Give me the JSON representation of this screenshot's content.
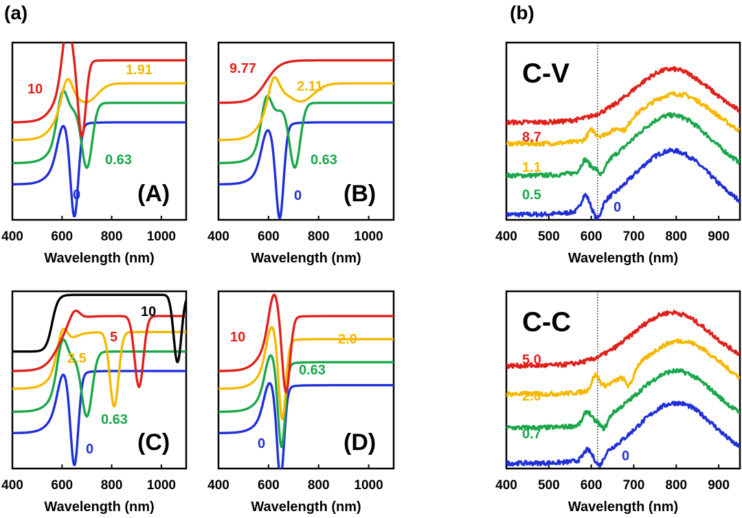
{
  "figure_labels": {
    "a": "(a)",
    "b": "(b)"
  },
  "chart_data": [
    {
      "id": "A",
      "type": "line",
      "panel_label": "(A)",
      "xlabel": "Wavelength (nm)",
      "xlim": [
        400,
        1100
      ],
      "xticks": [
        400,
        600,
        800,
        1000
      ],
      "yticks_shown": false,
      "grid": false,
      "series": [
        {
          "name": "0",
          "color": "#1f2fd8",
          "label": "0",
          "dip_nm": 650,
          "dip_width_nm": 22,
          "dip_depth": 0.5,
          "bump_nm": 600,
          "bump": 0.12,
          "offset": 0.2,
          "plateau": 0.55
        },
        {
          "name": "0.63",
          "color": "#1aa64a",
          "label": "0.63",
          "dip_nm": 700,
          "dip_width_nm": 30,
          "dip_depth": 0.36,
          "bump_nm": 600,
          "bump": 0.2,
          "offset": 0.32,
          "plateau": 0.66
        },
        {
          "name": "1.91",
          "color": "#f5b800",
          "label": "1.91",
          "dip_nm": 700,
          "dip_width_nm": 60,
          "dip_depth": 0.1,
          "bump_nm": 620,
          "bump": 0.12,
          "offset": 0.45,
          "plateau": 0.77
        },
        {
          "name": "10",
          "color": "#e0201b",
          "label": "10",
          "dip_nm": 680,
          "dip_width_nm": 22,
          "dip_depth": 0.42,
          "bump_nm": 620,
          "bump": 0.28,
          "offset": 0.55,
          "plateau": 0.9
        }
      ]
    },
    {
      "id": "B",
      "type": "line",
      "panel_label": "(B)",
      "xlabel": "Wavelength (nm)",
      "xlim": [
        400,
        1100
      ],
      "xticks": [
        400,
        600,
        800,
        1000
      ],
      "yticks_shown": false,
      "grid": false,
      "series": [
        {
          "name": "0",
          "color": "#1f2fd8",
          "label": "0",
          "dip_nm": 645,
          "dip_width_nm": 22,
          "dip_depth": 0.5,
          "bump_nm": 590,
          "bump": 0.12,
          "offset": 0.2,
          "plateau": 0.55
        },
        {
          "name": "0.63",
          "color": "#1aa64a",
          "label": "0.63",
          "dip_nm": 705,
          "dip_width_nm": 30,
          "dip_depth": 0.36,
          "bump_nm": 590,
          "bump": 0.2,
          "offset": 0.32,
          "plateau": 0.66
        },
        {
          "name": "2.11",
          "color": "#f5b800",
          "label": "2.11",
          "dip_nm": 730,
          "dip_width_nm": 70,
          "dip_depth": 0.1,
          "bump_nm": 620,
          "bump": 0.12,
          "offset": 0.45,
          "plateau": 0.77
        },
        {
          "name": "9.77",
          "color": "#e0201b",
          "label": "9.77",
          "dip_nm": 0,
          "dip_width_nm": 1,
          "dip_depth": 0,
          "bump_nm": 600,
          "bump": 0,
          "offset": 0.66,
          "plateau": 0.9
        }
      ]
    },
    {
      "id": "C",
      "type": "line",
      "panel_label": "(C)",
      "xlabel": "Wavelength (nm)",
      "xlim": [
        400,
        1100
      ],
      "xticks": [
        400,
        600,
        800,
        1000
      ],
      "yticks_shown": false,
      "grid": false,
      "series": [
        {
          "name": "0",
          "color": "#1f2fd8",
          "label": "0",
          "dip_nm": 650,
          "dip_width_nm": 22,
          "dip_depth": 0.5,
          "bump_nm": 600,
          "bump": 0.12,
          "offset": 0.2,
          "plateau": 0.55
        },
        {
          "name": "0.63",
          "color": "#1aa64a",
          "label": "0.63",
          "dip_nm": 700,
          "dip_width_nm": 30,
          "dip_depth": 0.36,
          "bump_nm": 600,
          "bump": 0.2,
          "offset": 0.32,
          "plateau": 0.66
        },
        {
          "name": "2.5",
          "color": "#f5b800",
          "label": "2.5",
          "dip_nm": 810,
          "dip_width_nm": 25,
          "dip_depth": 0.42,
          "bump_nm": 600,
          "bump": 0.14,
          "offset": 0.45,
          "plateau": 0.77
        },
        {
          "name": "5",
          "color": "#e0201b",
          "label": "5",
          "dip_nm": 910,
          "dip_width_nm": 25,
          "dip_depth": 0.4,
          "bump_nm": 650,
          "bump": 0.06,
          "offset": 0.55,
          "plateau": 0.86
        },
        {
          "name": "10",
          "color": "#000000",
          "label": "10",
          "dip_nm": 1065,
          "dip_width_nm": 22,
          "dip_depth": 0.38,
          "bump_nm": 700,
          "bump": 0.0,
          "offset": 0.66,
          "plateau": 1.0
        }
      ]
    },
    {
      "id": "D",
      "type": "line",
      "panel_label": "(D)",
      "xlabel": "Wavelength (nm)",
      "xlim": [
        400,
        1100
      ],
      "xticks": [
        400,
        600,
        800,
        1000
      ],
      "yticks_shown": false,
      "grid": false,
      "series": [
        {
          "name": "0",
          "color": "#1f2fd8",
          "label": "0",
          "dip_nm": 648,
          "dip_width_nm": 20,
          "dip_depth": 0.5,
          "bump_nm": 600,
          "bump": 0.12,
          "offset": 0.2,
          "plateau": 0.47
        },
        {
          "name": "0.63",
          "color": "#1aa64a",
          "label": "0.63",
          "dip_nm": 652,
          "dip_width_nm": 20,
          "dip_depth": 0.46,
          "bump_nm": 605,
          "bump": 0.14,
          "offset": 0.32,
          "plateau": 0.6
        },
        {
          "name": "2.0",
          "color": "#f5b800",
          "label": "2.0",
          "dip_nm": 655,
          "dip_width_nm": 20,
          "dip_depth": 0.44,
          "bump_nm": 610,
          "bump": 0.16,
          "offset": 0.45,
          "plateau": 0.73
        },
        {
          "name": "10",
          "color": "#e0201b",
          "label": "10",
          "dip_nm": 670,
          "dip_width_nm": 22,
          "dip_depth": 0.42,
          "bump_nm": 620,
          "bump": 0.2,
          "offset": 0.55,
          "plateau": 0.86
        }
      ]
    },
    {
      "id": "CV",
      "type": "line",
      "title": "C-V",
      "xlabel": "Wavelength (nm)",
      "xlim": [
        400,
        950
      ],
      "xticks": [
        400,
        500,
        600,
        700,
        800,
        900
      ],
      "yticks_shown": false,
      "grid": false,
      "reference_line_nm": 615,
      "series": [
        {
          "name": "0",
          "color": "#1f2fd8",
          "label": "0",
          "base": 0.03,
          "broad_center_nm": 790,
          "broad_height": 0.36,
          "dip_nm": 615,
          "dip_depth": 0.08,
          "peak_nm": 585,
          "peak": 0.08
        },
        {
          "name": "0.5",
          "color": "#1aa64a",
          "label": "0.5",
          "base": 0.25,
          "broad_center_nm": 790,
          "broad_height": 0.34,
          "dip_nm": 625,
          "dip_depth": 0.06,
          "peak_nm": 585,
          "peak": 0.06
        },
        {
          "name": "1.1",
          "color": "#f5b800",
          "label": "1.1",
          "base": 0.43,
          "broad_center_nm": 800,
          "broad_height": 0.28,
          "dip_nm": 680,
          "dip_depth": 0.04,
          "peak_nm": 600,
          "peak": 0.05
        },
        {
          "name": "8.7",
          "color": "#e0201b",
          "label": "8.7",
          "base": 0.55,
          "broad_center_nm": 790,
          "broad_height": 0.3,
          "dip_nm": 600,
          "dip_depth": 0.0,
          "peak_nm": 600,
          "peak": 0.0
        }
      ]
    },
    {
      "id": "CC",
      "type": "line",
      "title": "C-C",
      "xlabel": "Wavelength (nm)",
      "xlim": [
        400,
        950
      ],
      "xticks": [
        400,
        500,
        600,
        700,
        800,
        900
      ],
      "yticks_shown": false,
      "grid": false,
      "reference_line_nm": 615,
      "series": [
        {
          "name": "0",
          "color": "#1f2fd8",
          "label": "0",
          "base": 0.03,
          "broad_center_nm": 800,
          "broad_height": 0.34,
          "dip_nm": 620,
          "dip_depth": 0.06,
          "peak_nm": 590,
          "peak": 0.05
        },
        {
          "name": "0.7",
          "color": "#1aa64a",
          "label": "0.7",
          "base": 0.23,
          "broad_center_nm": 800,
          "broad_height": 0.32,
          "dip_nm": 630,
          "dip_depth": 0.06,
          "peak_nm": 590,
          "peak": 0.07
        },
        {
          "name": "2.0",
          "color": "#f5b800",
          "label": "2.0",
          "base": 0.42,
          "broad_center_nm": 810,
          "broad_height": 0.3,
          "dip_nm": 690,
          "dip_depth": 0.08,
          "peak_nm": 610,
          "peak": 0.08
        },
        {
          "name": "5.0",
          "color": "#e0201b",
          "label": "5.0",
          "base": 0.58,
          "broad_center_nm": 790,
          "broad_height": 0.3,
          "dip_nm": 600,
          "dip_depth": 0.0,
          "peak_nm": 600,
          "peak": 0.0
        }
      ]
    }
  ]
}
